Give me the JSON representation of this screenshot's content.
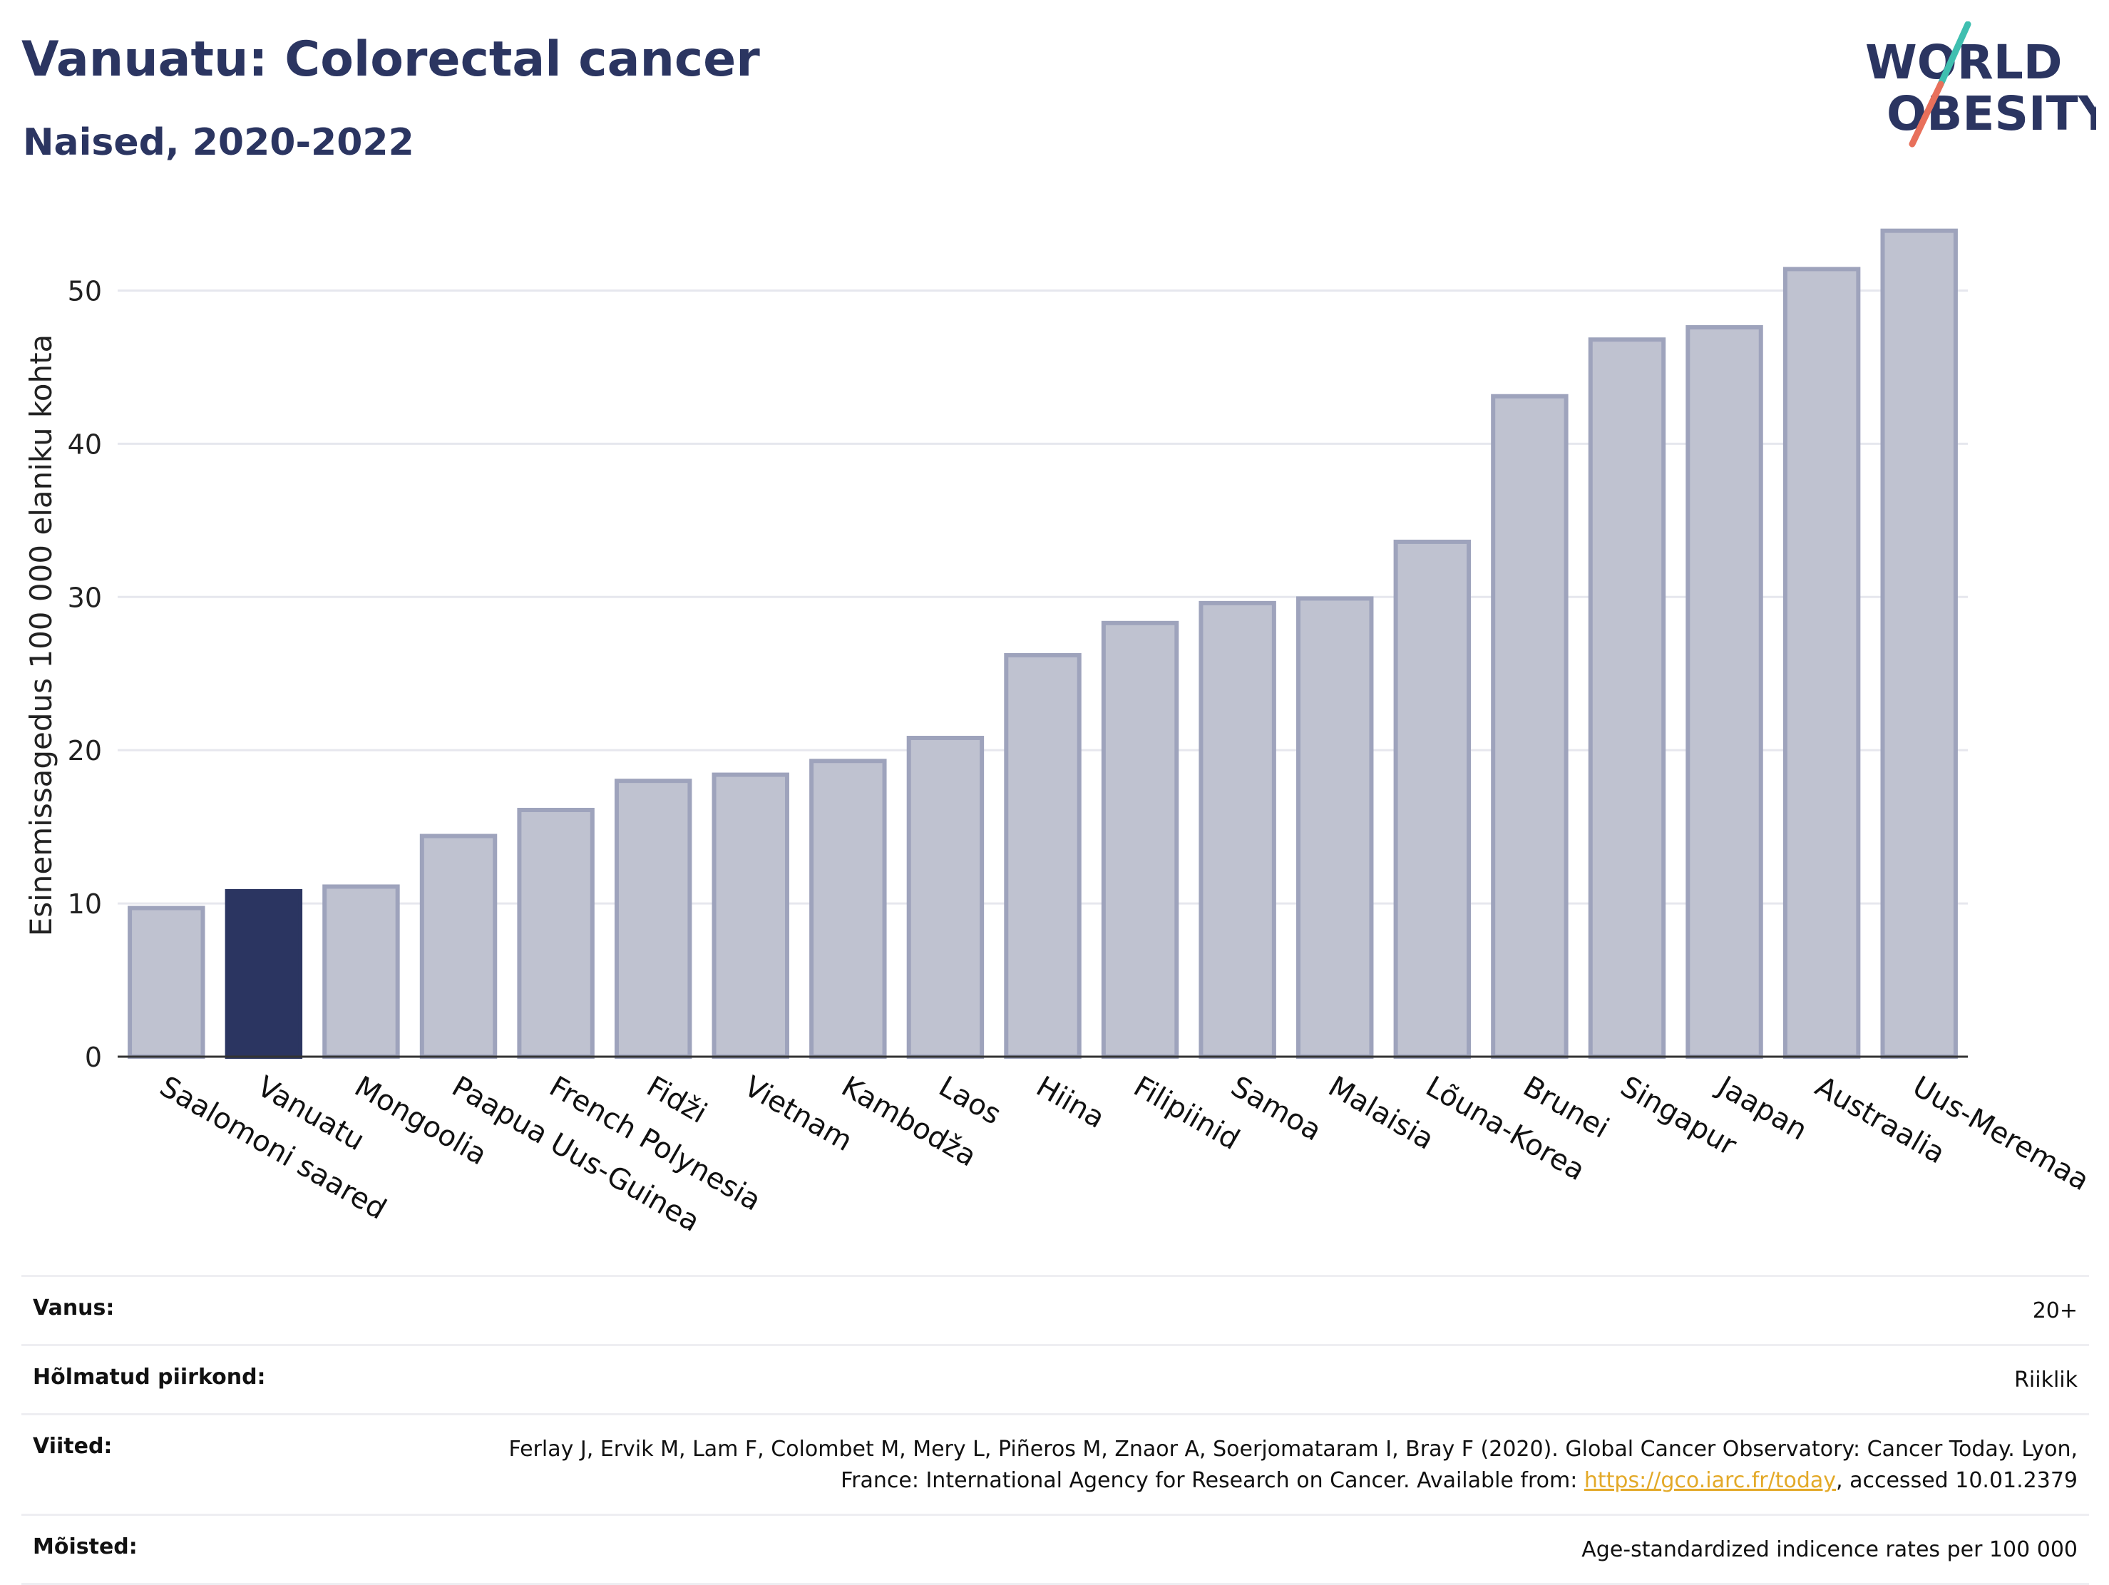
{
  "header": {
    "title": "Vanuatu: Colorectal cancer",
    "subtitle": "Naised, 2020-2022",
    "logo_line1": "WORLD",
    "logo_line2": "OBESITY"
  },
  "chart_data": {
    "type": "bar",
    "ylabel": "Esinemissagedus 100 000 elaniku kohta",
    "ylim": [
      0,
      55
    ],
    "yticks": [
      0,
      10,
      20,
      30,
      40,
      50
    ],
    "grid": true,
    "highlight": "Vanuatu",
    "colors": {
      "bar": "#bfc2d0",
      "bar_border": "#9ea3bc",
      "highlight": "#2b3561",
      "grid": "#e6e7ee",
      "axis": "#333333"
    },
    "categories": [
      "Saalomoni saared",
      "Vanuatu",
      "Mongoolia",
      "Paapua Uus-Guinea",
      "French Polynesia",
      "Fidži",
      "Vietnam",
      "Kambodža",
      "Laos",
      "Hiina",
      "Filipiinid",
      "Samoa",
      "Malaisia",
      "Lõuna-Korea",
      "Brunei",
      "Singapur",
      "Jaapan",
      "Austraalia",
      "Uus-Meremaa"
    ],
    "values": [
      9.7,
      10.8,
      11.1,
      14.4,
      16.1,
      18.0,
      18.4,
      19.3,
      20.8,
      26.2,
      28.3,
      29.6,
      29.9,
      33.6,
      43.1,
      46.8,
      47.6,
      51.4,
      53.9
    ]
  },
  "info": {
    "age_label": "Vanus:",
    "age_value": "20+",
    "coverage_label": "Hõlmatud piirkond:",
    "coverage_value": "Riiklik",
    "refs_label": "Viited:",
    "refs_text": "Ferlay J, Ervik M, Lam F, Colombet M, Mery L, Piñeros M, Znaor A, Soerjomataram I, Bray F (2020). Global Cancer Observatory: Cancer Today. Lyon, France: International Agency for Research on Cancer. Available from: ",
    "refs_link": "https://gco.iarc.fr/today",
    "refs_after": ", accessed 10.01.2379",
    "def_label": "Mõisted:",
    "def_value": "Age-standardized indicence rates per 100 000"
  }
}
